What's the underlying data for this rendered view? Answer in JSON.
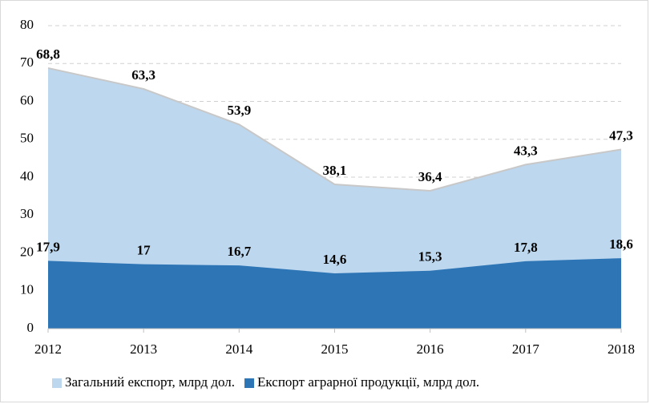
{
  "chart_data": {
    "type": "area",
    "categories": [
      "2012",
      "2013",
      "2014",
      "2015",
      "2016",
      "2017",
      "2018"
    ],
    "series": [
      {
        "name": "Загальний експорт, млрд дол.",
        "color": "#bdd7ee",
        "values": [
          68.8,
          63.3,
          53.9,
          38.1,
          36.4,
          43.3,
          47.3
        ],
        "value_labels": [
          "68,8",
          "63,3",
          "53,9",
          "38,1",
          "36,4",
          "43,3",
          "47,3"
        ]
      },
      {
        "name": "Експорт аграрної продукції, млрд дол.",
        "color": "#2e75b6",
        "values": [
          17.9,
          17,
          16.7,
          14.6,
          15.3,
          17.8,
          18.6
        ],
        "value_labels": [
          "17,9",
          "17",
          "16,7",
          "14,6",
          "15,3",
          "17,8",
          "18,6"
        ]
      }
    ],
    "ylim": [
      0,
      80
    ],
    "yticks": [
      0,
      10,
      20,
      30,
      40,
      50,
      60,
      70,
      80
    ],
    "grid": true,
    "legend": "bottom"
  }
}
